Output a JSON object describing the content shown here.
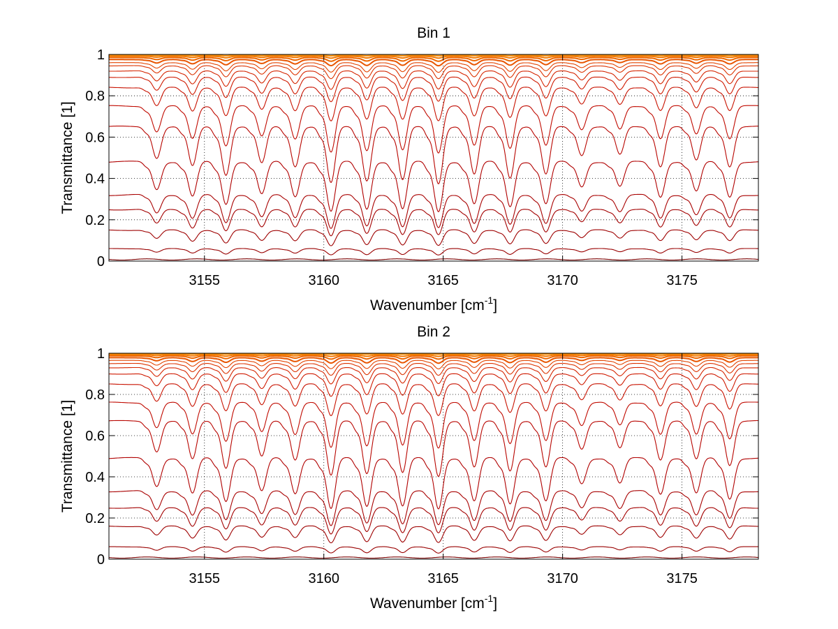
{
  "chart_data": [
    {
      "type": "line",
      "title": "Bin 1",
      "xlabel": "Wavenumber [cm",
      "xlabel_sup": "-1",
      "xlabel_end": "]",
      "ylabel": "Transmittance [1]",
      "xlim": [
        3151,
        3178.2
      ],
      "ylim": [
        0,
        1
      ],
      "xticks": [
        3155,
        3160,
        3165,
        3170,
        3175
      ],
      "yticks": [
        0,
        0.2,
        0.4,
        0.6,
        0.8,
        1
      ],
      "grid": true,
      "absorption_lines": [
        {
          "x": 3153.0,
          "strength": 0.55
        },
        {
          "x": 3154.5,
          "strength": 0.7
        },
        {
          "x": 3155.9,
          "strength": 0.85
        },
        {
          "x": 3157.4,
          "strength": 0.65
        },
        {
          "x": 3158.8,
          "strength": 0.7
        },
        {
          "x": 3160.3,
          "strength": 1.0
        },
        {
          "x": 3161.8,
          "strength": 0.95
        },
        {
          "x": 3163.3,
          "strength": 0.95
        },
        {
          "x": 3164.8,
          "strength": 1.0
        },
        {
          "x": 3166.3,
          "strength": 0.85
        },
        {
          "x": 3167.8,
          "strength": 0.9
        },
        {
          "x": 3169.3,
          "strength": 0.85
        },
        {
          "x": 3170.8,
          "strength": 0.5
        },
        {
          "x": 3172.4,
          "strength": 0.5
        },
        {
          "x": 3174.1,
          "strength": 0.7
        },
        {
          "x": 3175.6,
          "strength": 0.6
        },
        {
          "x": 3177.0,
          "strength": 0.7
        }
      ],
      "series": [
        {
          "baseline": 0.008,
          "color": "#7a0000"
        },
        {
          "baseline": 0.06,
          "color": "#990000"
        },
        {
          "baseline": 0.15,
          "color": "#9e0000"
        },
        {
          "baseline": 0.25,
          "color": "#a30000"
        },
        {
          "baseline": 0.32,
          "color": "#a80000"
        },
        {
          "baseline": 0.48,
          "color": "#b00000"
        },
        {
          "baseline": 0.65,
          "color": "#b80500"
        },
        {
          "baseline": 0.75,
          "color": "#c00a00"
        },
        {
          "baseline": 0.84,
          "color": "#c81200"
        },
        {
          "baseline": 0.89,
          "color": "#cf1a00"
        },
        {
          "baseline": 0.92,
          "color": "#d52500"
        },
        {
          "baseline": 0.945,
          "color": "#dc3300"
        },
        {
          "baseline": 0.96,
          "color": "#e24400"
        },
        {
          "baseline": 0.975,
          "color": "#e85500"
        },
        {
          "baseline": 0.985,
          "color": "#ee6600"
        },
        {
          "baseline": 0.992,
          "color": "#f27800"
        },
        {
          "baseline": 0.997,
          "color": "#f68a00"
        }
      ]
    },
    {
      "type": "line",
      "title": "Bin 2",
      "xlabel": "Wavenumber [cm",
      "xlabel_sup": "-1",
      "xlabel_end": "]",
      "ylabel": "Transmittance [1]",
      "xlim": [
        3151,
        3178.2
      ],
      "ylim": [
        0,
        1
      ],
      "xticks": [
        3155,
        3160,
        3165,
        3170,
        3175
      ],
      "yticks": [
        0,
        0.2,
        0.4,
        0.6,
        0.8,
        1
      ],
      "grid": true,
      "absorption_lines": [
        {
          "x": 3153.0,
          "strength": 0.55
        },
        {
          "x": 3154.5,
          "strength": 0.7
        },
        {
          "x": 3155.9,
          "strength": 0.85
        },
        {
          "x": 3157.4,
          "strength": 0.65
        },
        {
          "x": 3158.8,
          "strength": 0.7
        },
        {
          "x": 3160.3,
          "strength": 1.0
        },
        {
          "x": 3161.8,
          "strength": 0.95
        },
        {
          "x": 3163.3,
          "strength": 0.95
        },
        {
          "x": 3164.8,
          "strength": 1.0
        },
        {
          "x": 3166.3,
          "strength": 0.85
        },
        {
          "x": 3167.8,
          "strength": 0.9
        },
        {
          "x": 3169.3,
          "strength": 0.85
        },
        {
          "x": 3170.8,
          "strength": 0.5
        },
        {
          "x": 3172.4,
          "strength": 0.5
        },
        {
          "x": 3174.1,
          "strength": 0.7
        },
        {
          "x": 3175.6,
          "strength": 0.7
        },
        {
          "x": 3177.0,
          "strength": 0.8
        }
      ],
      "series": [
        {
          "baseline": 0.008,
          "color": "#7a0000"
        },
        {
          "baseline": 0.06,
          "color": "#990000"
        },
        {
          "baseline": 0.16,
          "color": "#9e0000"
        },
        {
          "baseline": 0.25,
          "color": "#a30000"
        },
        {
          "baseline": 0.33,
          "color": "#a80000"
        },
        {
          "baseline": 0.49,
          "color": "#b00000"
        },
        {
          "baseline": 0.67,
          "color": "#b80500"
        },
        {
          "baseline": 0.76,
          "color": "#c00a00"
        },
        {
          "baseline": 0.85,
          "color": "#c81200"
        },
        {
          "baseline": 0.9,
          "color": "#cf1a00"
        },
        {
          "baseline": 0.93,
          "color": "#d52500"
        },
        {
          "baseline": 0.95,
          "color": "#dc3300"
        },
        {
          "baseline": 0.965,
          "color": "#e24400"
        },
        {
          "baseline": 0.978,
          "color": "#e85500"
        },
        {
          "baseline": 0.987,
          "color": "#ee6600"
        },
        {
          "baseline": 0.993,
          "color": "#f27800"
        },
        {
          "baseline": 0.998,
          "color": "#f68a00"
        }
      ]
    }
  ]
}
